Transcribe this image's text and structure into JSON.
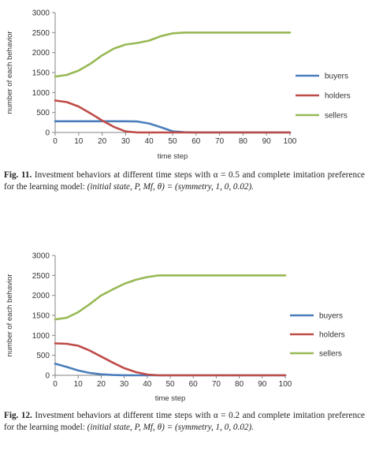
{
  "chart_data": [
    {
      "type": "line",
      "xlabel": "time step",
      "ylabel": "number of each behavior",
      "xlim": [
        0,
        100
      ],
      "ylim": [
        0,
        3000
      ],
      "xticks": [
        0,
        10,
        20,
        30,
        40,
        50,
        60,
        70,
        80,
        90,
        100
      ],
      "yticks": [
        0,
        500,
        1000,
        1500,
        2000,
        2500,
        3000
      ],
      "legend_position": "right",
      "x": [
        0,
        5,
        10,
        15,
        20,
        25,
        30,
        35,
        40,
        45,
        50,
        55,
        60,
        65,
        70,
        75,
        80,
        85,
        90,
        95,
        100
      ],
      "series": [
        {
          "name": "buyers",
          "color": "#4a7ebb",
          "values": [
            280,
            280,
            280,
            280,
            280,
            280,
            280,
            275,
            225,
            130,
            30,
            5,
            0,
            0,
            0,
            0,
            0,
            0,
            0,
            0,
            0
          ]
        },
        {
          "name": "holders",
          "color": "#be4b48",
          "values": [
            800,
            760,
            650,
            480,
            300,
            140,
            25,
            0,
            0,
            0,
            0,
            0,
            0,
            0,
            0,
            0,
            0,
            0,
            0,
            0,
            0
          ]
        },
        {
          "name": "sellers",
          "color": "#98b954",
          "values": [
            1400,
            1440,
            1550,
            1720,
            1930,
            2100,
            2200,
            2240,
            2300,
            2410,
            2480,
            2500,
            2500,
            2500,
            2500,
            2500,
            2500,
            2500,
            2500,
            2500,
            2500
          ]
        }
      ]
    },
    {
      "type": "line",
      "xlabel": "time step",
      "ylabel": "number of each behavior",
      "xlim": [
        0,
        100
      ],
      "ylim": [
        0,
        3000
      ],
      "xticks": [
        0,
        10,
        20,
        30,
        40,
        50,
        60,
        70,
        80,
        90,
        100
      ],
      "yticks": [
        0,
        500,
        1000,
        1500,
        2000,
        2500,
        3000
      ],
      "legend_position": "right",
      "x": [
        0,
        5,
        10,
        15,
        20,
        25,
        30,
        35,
        40,
        45,
        50,
        55,
        60,
        65,
        70,
        75,
        80,
        85,
        90,
        95,
        100
      ],
      "series": [
        {
          "name": "buyers",
          "color": "#4a7ebb",
          "values": [
            290,
            210,
            120,
            60,
            25,
            8,
            2,
            0,
            0,
            0,
            0,
            0,
            0,
            0,
            0,
            0,
            0,
            0,
            0,
            0,
            0
          ]
        },
        {
          "name": "holders",
          "color": "#be4b48",
          "values": [
            800,
            790,
            740,
            620,
            470,
            320,
            180,
            80,
            20,
            0,
            0,
            0,
            0,
            0,
            0,
            0,
            0,
            0,
            0,
            0,
            0
          ]
        },
        {
          "name": "sellers",
          "color": "#98b954",
          "values": [
            1400,
            1440,
            1580,
            1780,
            2000,
            2150,
            2290,
            2390,
            2460,
            2500,
            2500,
            2500,
            2500,
            2500,
            2500,
            2500,
            2500,
            2500,
            2500,
            2500,
            2500
          ]
        }
      ]
    }
  ],
  "captions": [
    {
      "label": "Fig. 11.",
      "text": "Investment behaviors at different time steps with α = 0.5 and complete imitation preference for the learning model:",
      "math": "(initial state, P, Mf, θ) = (symmetry, 1, 0, 0.02)."
    },
    {
      "label": "Fig. 12.",
      "text": "Investment behaviors at different time steps with α = 0.2 and complete imitation preference for the learning model:",
      "math": "(initial state, P, Mf, θ) = (symmetry, 1, 0, 0.02)."
    }
  ]
}
